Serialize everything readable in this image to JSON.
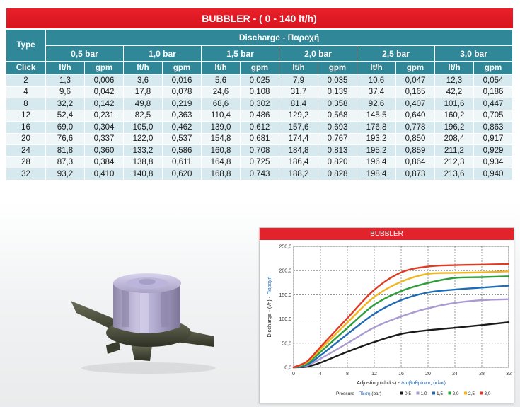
{
  "table": {
    "title": "BUBBLER - ( 0 - 140 lt/h)",
    "type_label": "Type",
    "discharge_label": "Discharge - Παροχή",
    "click_label": "Click",
    "pressures": [
      "0,5 bar",
      "1,0 bar",
      "1,5 bar",
      "2,0 bar",
      "2,5 bar",
      "3,0 bar"
    ],
    "unit_lth": "lt/h",
    "unit_gpm": "gpm",
    "rows": [
      [
        "2",
        "1,3",
        "0,006",
        "3,6",
        "0,016",
        "5,6",
        "0,025",
        "7,9",
        "0,035",
        "10,6",
        "0,047",
        "12,3",
        "0,054"
      ],
      [
        "4",
        "9,6",
        "0,042",
        "17,8",
        "0,078",
        "24,6",
        "0,108",
        "31,7",
        "0,139",
        "37,4",
        "0,165",
        "42,2",
        "0,186"
      ],
      [
        "8",
        "32,2",
        "0,142",
        "49,8",
        "0,219",
        "68,6",
        "0,302",
        "81,4",
        "0,358",
        "92,6",
        "0,407",
        "101,6",
        "0,447"
      ],
      [
        "12",
        "52,4",
        "0,231",
        "82,5",
        "0,363",
        "110,4",
        "0,486",
        "129,2",
        "0,568",
        "145,5",
        "0,640",
        "160,2",
        "0,705"
      ],
      [
        "16",
        "69,0",
        "0,304",
        "105,0",
        "0,462",
        "139,0",
        "0,612",
        "157,6",
        "0,693",
        "176,8",
        "0,778",
        "196,2",
        "0,863"
      ],
      [
        "20",
        "76,6",
        "0,337",
        "122,0",
        "0,537",
        "154,8",
        "0,681",
        "174,4",
        "0,767",
        "193,2",
        "0,850",
        "208,4",
        "0,917"
      ],
      [
        "24",
        "81,8",
        "0,360",
        "133,2",
        "0,586",
        "160,8",
        "0,708",
        "184,8",
        "0,813",
        "195,2",
        "0,859",
        "211,2",
        "0,929"
      ],
      [
        "28",
        "87,3",
        "0,384",
        "138,8",
        "0,611",
        "164,8",
        "0,725",
        "186,4",
        "0,820",
        "196,4",
        "0,864",
        "212,3",
        "0,934"
      ],
      [
        "32",
        "93,2",
        "0,410",
        "140,8",
        "0,620",
        "168,8",
        "0,743",
        "188,2",
        "0,828",
        "198,4",
        "0,873",
        "213,6",
        "0,940"
      ]
    ]
  },
  "chart_data": {
    "type": "line",
    "title": "BUBBLER",
    "xlabel_prefix": "Adjusting (clicks) - ",
    "xlabel_greek": "Διαβαθμίσεις (κλικ)",
    "ylabel_prefix": "Discharge - (l/h) - ",
    "ylabel_greek": "Παροχή",
    "x_ticks": [
      "0",
      "4",
      "8",
      "12",
      "16",
      "20",
      "24",
      "28",
      "32"
    ],
    "y_ticks": [
      "0,0",
      "50,0",
      "100,0",
      "150,0",
      "200,0",
      "250,0"
    ],
    "xlim": [
      0,
      32
    ],
    "ylim": [
      0,
      250
    ],
    "grid": true,
    "legend_title_prefix": "Pressure - ",
    "legend_title_greek": "Πίεση",
    "legend_title_suffix": " (bar)",
    "x": [
      0,
      2,
      4,
      8,
      12,
      16,
      20,
      24,
      28,
      32
    ],
    "series": [
      {
        "name": "0,5",
        "color": "#1a1a1a",
        "values": [
          0,
          1.3,
          9.6,
          32.2,
          52.4,
          69.0,
          76.6,
          81.8,
          87.3,
          93.2
        ]
      },
      {
        "name": "1,0",
        "color": "#a99bd2",
        "values": [
          0,
          3.6,
          17.8,
          49.8,
          82.5,
          105.0,
          122.0,
          133.2,
          138.8,
          140.8
        ]
      },
      {
        "name": "1,5",
        "color": "#1f6bb5",
        "values": [
          0,
          5.6,
          24.6,
          68.6,
          110.4,
          139.0,
          154.8,
          160.8,
          164.8,
          168.8
        ]
      },
      {
        "name": "2,0",
        "color": "#2e9e3a",
        "values": [
          0,
          7.9,
          31.7,
          81.4,
          129.2,
          157.6,
          174.4,
          184.8,
          186.4,
          188.2
        ]
      },
      {
        "name": "2,5",
        "color": "#f2b51d",
        "values": [
          0,
          10.6,
          37.4,
          92.6,
          145.5,
          176.8,
          193.2,
          195.2,
          196.4,
          198.4
        ]
      },
      {
        "name": "3,0",
        "color": "#e03a25",
        "values": [
          0,
          12.3,
          42.2,
          101.6,
          160.2,
          196.2,
          208.4,
          211.2,
          212.3,
          213.6
        ]
      }
    ]
  },
  "colors": {
    "title_red": "#e3232c",
    "header_teal": "#2f8797",
    "row_light": "#eef6f8",
    "row_dark": "#d6e9ee",
    "greek_blue": "#2a6ebd"
  },
  "product_image": {
    "icon": "bubbler-emitter-photo"
  }
}
